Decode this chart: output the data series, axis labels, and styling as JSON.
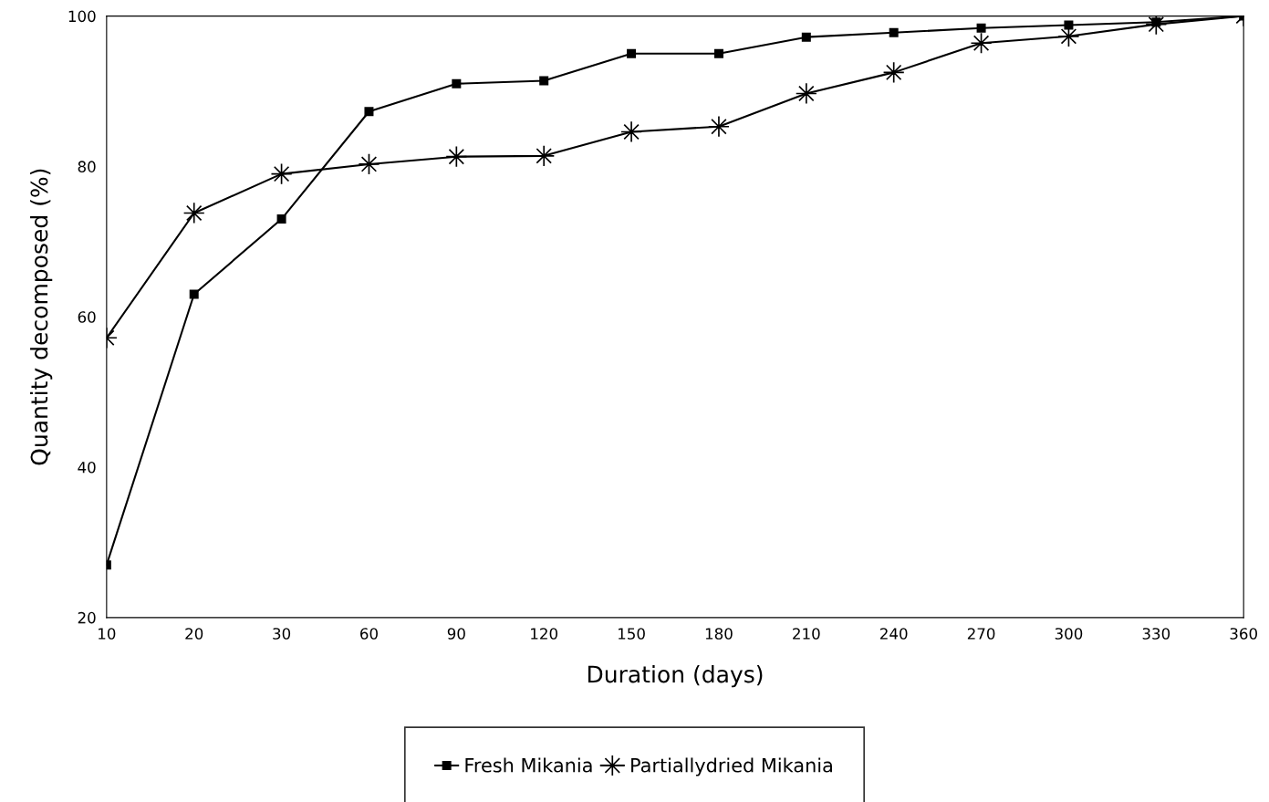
{
  "chart_data": {
    "type": "line",
    "xlabel": "Duration (days)",
    "ylabel": "Quantity decomposed (%)",
    "categories": [
      "10",
      "20",
      "30",
      "60",
      "90",
      "120",
      "150",
      "180",
      "210",
      "240",
      "270",
      "300",
      "330",
      "360"
    ],
    "series": [
      {
        "name": "Fresh Mikania",
        "color": "#000000",
        "marker": "square",
        "values": [
          27,
          63,
          73,
          87.3,
          91,
          91.4,
          95,
          95,
          97.2,
          97.8,
          98.4,
          98.8,
          99.2,
          100
        ]
      },
      {
        "name": "Partiallydried Mikania",
        "color": "#000000",
        "marker": "star",
        "values": [
          57.2,
          73.8,
          79,
          80.3,
          81.3,
          81.4,
          84.6,
          85.3,
          89.7,
          92.5,
          96.4,
          97.3,
          98.9,
          100
        ]
      }
    ],
    "ylim": [
      20,
      100
    ],
    "yticks": [
      20,
      40,
      60,
      80,
      100
    ],
    "grid": false,
    "legend": "bottom",
    "line_style": "solid"
  }
}
